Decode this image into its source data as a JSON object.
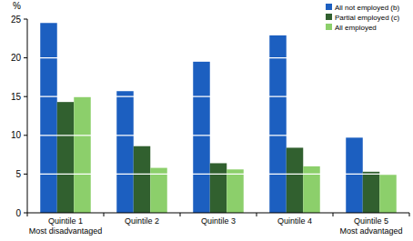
{
  "chart_data": {
    "type": "bar",
    "y_label": "%",
    "categories": [
      "Quintile 1\nMost disadvantaged",
      "Quintile 2",
      "Quintile 3",
      "Quintile 4",
      "Quintile 5\nMost advantaged"
    ],
    "series": [
      {
        "name": "All not employed (b)",
        "color": "#1c5fc0",
        "values": [
          24.5,
          15.7,
          19.5,
          22.9,
          9.7
        ]
      },
      {
        "name": "Partial employed (c)",
        "color": "#31602f",
        "values": [
          14.3,
          8.6,
          6.4,
          8.4,
          5.3
        ]
      },
      {
        "name": "All employed",
        "color": "#8ccf6b",
        "values": [
          15.0,
          5.8,
          5.6,
          6.0,
          4.9
        ]
      }
    ],
    "ylim": [
      0,
      25
    ],
    "yticks": [
      0,
      5,
      10,
      15,
      20,
      25
    ],
    "grid": true,
    "legend": "top-right"
  }
}
